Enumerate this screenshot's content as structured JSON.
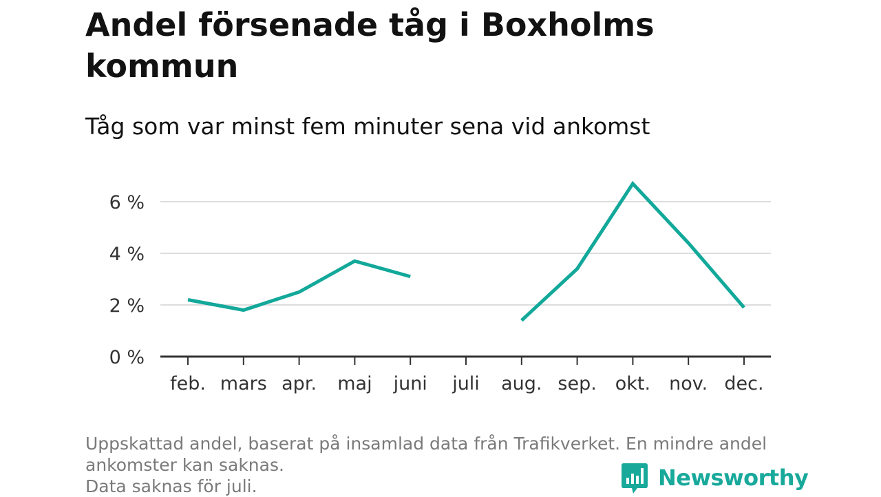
{
  "title": "Andel försenade tåg i Boxholms kommun",
  "subtitle": "Tåg som var minst fem minuter sena vid ankomst",
  "footer": {
    "line1": "Uppskattad andel, baserat på insamlad data från Trafikverket. En mindre andel",
    "line2": "ankomster kan saknas.",
    "line3": "Data saknas för juli."
  },
  "logo": {
    "text": "Newsworthy",
    "icon": "bar-chart-speech-bubble-icon"
  },
  "colors": {
    "line": "#12a89a",
    "grid": "#dddddd",
    "axis": "#333333",
    "logo": "#18a99b"
  },
  "chart_data": {
    "type": "line",
    "title": "Andel försenade tåg i Boxholms kommun",
    "subtitle": "Tåg som var minst fem minuter sena vid ankomst",
    "categories": [
      "feb.",
      "mars",
      "apr.",
      "maj",
      "juni",
      "juli",
      "aug.",
      "sep.",
      "okt.",
      "nov.",
      "dec."
    ],
    "series": [
      {
        "values": [
          2.2,
          1.8,
          2.5,
          3.7,
          3.1,
          null,
          1.4,
          3.4,
          6.7,
          4.4,
          1.9
        ]
      }
    ],
    "ylim": [
      0,
      7
    ],
    "yticks": [
      0,
      2,
      4,
      6
    ],
    "ytick_labels": [
      "0 %",
      "2 %",
      "4 %",
      "6 %"
    ],
    "xlabel": "",
    "ylabel": "",
    "grid": true,
    "legend": "none"
  }
}
